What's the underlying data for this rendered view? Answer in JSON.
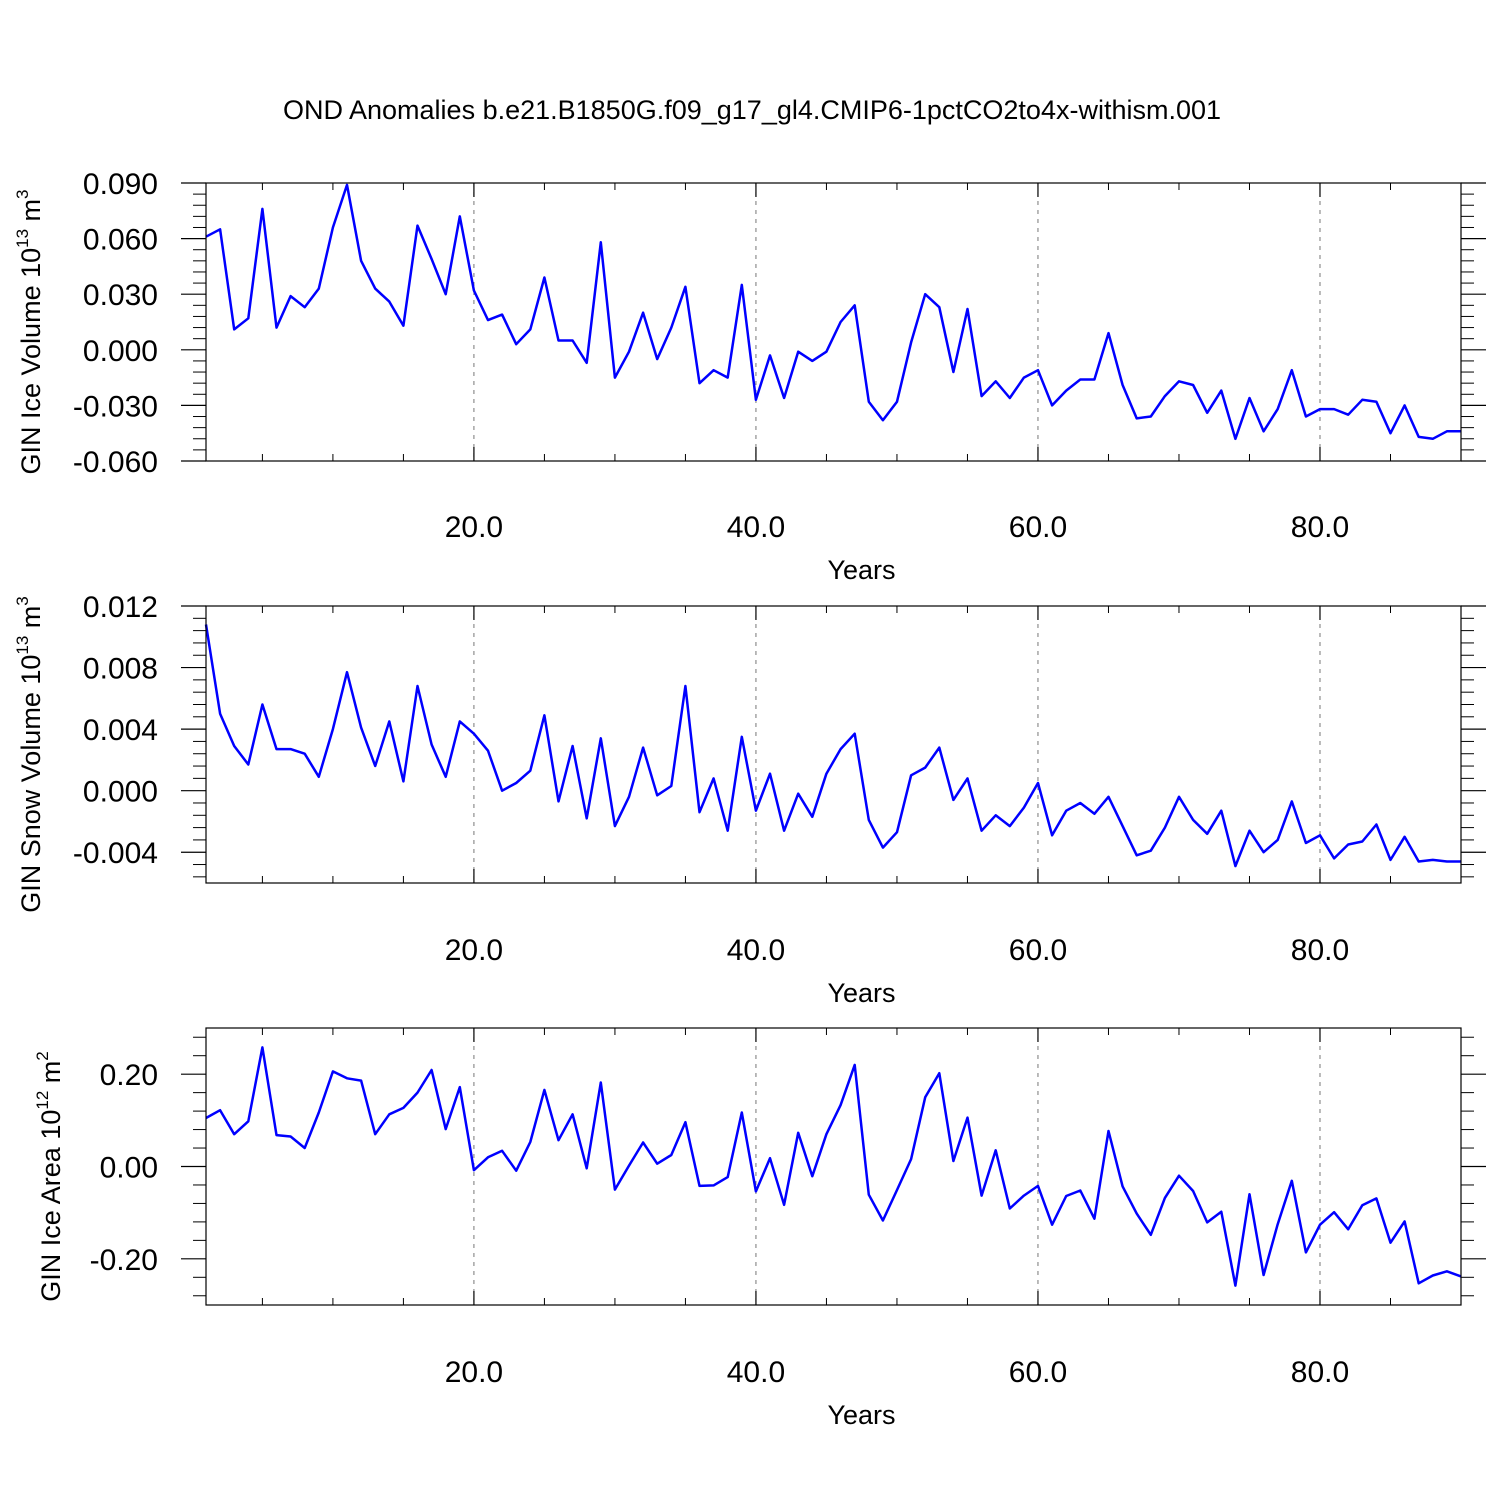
{
  "title": "OND Anomalies b.e21.B1850G.f09_g17_gl4.CMIP6-1pctCO2to4x-withism.001",
  "chart_data": [
    {
      "type": "line",
      "ylabel": {
        "main": "GIN Ice Volume 10",
        "exp": "13",
        "unit": " m",
        "unit_exp": "3"
      },
      "xlabel": "Years",
      "xlim": [
        1,
        90
      ],
      "ylim": [
        -0.06,
        0.09
      ],
      "yticks": [
        -0.06,
        -0.03,
        0.0,
        0.03,
        0.06,
        0.09
      ],
      "ytick_labels": [
        "-0.060",
        "-0.030",
        "0.000",
        "0.030",
        "0.060",
        "0.090"
      ],
      "xticks": [
        20,
        40,
        60,
        80
      ],
      "xtick_labels": [
        "20.0",
        "40.0",
        "60.0",
        "80.0"
      ],
      "grid": "vertical dashed at major x ticks",
      "line_color": "#0000ff",
      "x": [
        1,
        2,
        3,
        4,
        5,
        6,
        7,
        8,
        9,
        10,
        11,
        12,
        13,
        14,
        15,
        16,
        17,
        18,
        19,
        20,
        21,
        22,
        23,
        24,
        25,
        26,
        27,
        28,
        29,
        30,
        31,
        32,
        33,
        34,
        35,
        36,
        37,
        38,
        39,
        40,
        41,
        42,
        43,
        44,
        45,
        46,
        47,
        48,
        49,
        50,
        51,
        52,
        53,
        54,
        55,
        56,
        57,
        58,
        59,
        60,
        61,
        62,
        63,
        64,
        65,
        66,
        67,
        68,
        69,
        70,
        71,
        72,
        73,
        74,
        75,
        76,
        77,
        78,
        79,
        80,
        81,
        82,
        83,
        84,
        85,
        86,
        87,
        88,
        89,
        90
      ],
      "y": [
        0.061,
        0.065,
        0.011,
        0.017,
        0.076,
        0.012,
        0.029,
        0.023,
        0.033,
        0.066,
        0.089,
        0.048,
        0.033,
        0.026,
        0.013,
        0.067,
        0.049,
        0.03,
        0.072,
        0.032,
        0.016,
        0.019,
        0.003,
        0.011,
        0.039,
        0.005,
        0.005,
        -0.007,
        0.058,
        -0.015,
        -0.001,
        0.02,
        -0.005,
        0.012,
        0.034,
        -0.018,
        -0.011,
        -0.015,
        0.035,
        -0.027,
        -0.003,
        -0.026,
        -0.001,
        -0.006,
        -0.001,
        0.015,
        0.024,
        -0.028,
        -0.038,
        -0.028,
        0.004,
        0.03,
        0.023,
        -0.012,
        0.022,
        -0.025,
        -0.017,
        -0.026,
        -0.015,
        -0.011,
        -0.03,
        -0.022,
        -0.016,
        -0.016,
        0.009,
        -0.019,
        -0.037,
        -0.036,
        -0.025,
        -0.017,
        -0.019,
        -0.034,
        -0.022,
        -0.048,
        -0.026,
        -0.044,
        -0.032,
        -0.011,
        -0.036,
        -0.032,
        -0.032,
        -0.035,
        -0.027,
        -0.028,
        -0.045,
        -0.03,
        -0.047,
        -0.048,
        -0.044,
        -0.044
      ]
    },
    {
      "type": "line",
      "ylabel": {
        "main": "GIN Snow Volume 10",
        "exp": "13",
        "unit": " m",
        "unit_exp": "3"
      },
      "xlabel": "Years",
      "xlim": [
        1,
        90
      ],
      "ylim": [
        -0.006,
        0.012
      ],
      "yticks": [
        -0.004,
        0.0,
        0.004,
        0.008,
        0.012
      ],
      "ytick_labels": [
        "-0.004",
        "0.000",
        "0.004",
        "0.008",
        "0.012"
      ],
      "xticks": [
        20,
        40,
        60,
        80
      ],
      "xtick_labels": [
        "20.0",
        "40.0",
        "60.0",
        "80.0"
      ],
      "grid": "vertical dashed at major x ticks",
      "line_color": "#0000ff",
      "x": [
        1,
        2,
        3,
        4,
        5,
        6,
        7,
        8,
        9,
        10,
        11,
        12,
        13,
        14,
        15,
        16,
        17,
        18,
        19,
        20,
        21,
        22,
        23,
        24,
        25,
        26,
        27,
        28,
        29,
        30,
        31,
        32,
        33,
        34,
        35,
        36,
        37,
        38,
        39,
        40,
        41,
        42,
        43,
        44,
        45,
        46,
        47,
        48,
        49,
        50,
        51,
        52,
        53,
        54,
        55,
        56,
        57,
        58,
        59,
        60,
        61,
        62,
        63,
        64,
        65,
        66,
        67,
        68,
        69,
        70,
        71,
        72,
        73,
        74,
        75,
        76,
        77,
        78,
        79,
        80,
        81,
        82,
        83,
        84,
        85,
        86,
        87,
        88,
        89,
        90
      ],
      "y": [
        0.0108,
        0.005,
        0.0029,
        0.0017,
        0.0056,
        0.0027,
        0.0027,
        0.0024,
        0.0009,
        0.004,
        0.0077,
        0.0041,
        0.0016,
        0.0045,
        0.0006,
        0.0068,
        0.003,
        0.0009,
        0.0045,
        0.0037,
        0.0026,
        0.0,
        0.0005,
        0.0013,
        0.0049,
        -0.0007,
        0.0029,
        -0.0018,
        0.0034,
        -0.0023,
        -0.0004,
        0.0028,
        -0.0003,
        0.0003,
        0.0068,
        -0.0014,
        0.0008,
        -0.0026,
        0.0035,
        -0.0013,
        0.0011,
        -0.0026,
        -0.0002,
        -0.0017,
        0.0011,
        0.0027,
        0.0037,
        -0.0019,
        -0.0037,
        -0.0027,
        0.001,
        0.0015,
        0.0028,
        -0.0006,
        0.0008,
        -0.0026,
        -0.0016,
        -0.0023,
        -0.0011,
        0.0005,
        -0.0029,
        -0.0013,
        -0.0008,
        -0.0015,
        -0.0004,
        -0.0023,
        -0.0042,
        -0.0039,
        -0.0024,
        -0.0004,
        -0.0019,
        -0.0028,
        -0.0013,
        -0.0049,
        -0.0026,
        -0.004,
        -0.0032,
        -0.0007,
        -0.0034,
        -0.0029,
        -0.0044,
        -0.0035,
        -0.0033,
        -0.0022,
        -0.0045,
        -0.003,
        -0.0046,
        -0.0045,
        -0.0046,
        -0.0046
      ]
    },
    {
      "type": "line",
      "ylabel": {
        "main": "GIN Ice Area 10",
        "exp": "12",
        "unit": " m",
        "unit_exp": "2"
      },
      "xlabel": "Years",
      "xlim": [
        1,
        90
      ],
      "ylim": [
        -0.3,
        0.3
      ],
      "yticks": [
        -0.2,
        0.0,
        0.2
      ],
      "ytick_labels": [
        "-0.20",
        "0.00",
        "0.20"
      ],
      "xticks": [
        20,
        40,
        60,
        80
      ],
      "xtick_labels": [
        "20.0",
        "40.0",
        "60.0",
        "80.0"
      ],
      "grid": "vertical dashed at major x ticks",
      "line_color": "#0000ff",
      "x": [
        1,
        2,
        3,
        4,
        5,
        6,
        7,
        8,
        9,
        10,
        11,
        12,
        13,
        14,
        15,
        16,
        17,
        18,
        19,
        20,
        21,
        22,
        23,
        24,
        25,
        26,
        27,
        28,
        29,
        30,
        31,
        32,
        33,
        34,
        35,
        36,
        37,
        38,
        39,
        40,
        41,
        42,
        43,
        44,
        45,
        46,
        47,
        48,
        49,
        50,
        51,
        52,
        53,
        54,
        55,
        56,
        57,
        58,
        59,
        60,
        61,
        62,
        63,
        64,
        65,
        66,
        67,
        68,
        69,
        70,
        71,
        72,
        73,
        74,
        75,
        76,
        77,
        78,
        79,
        80,
        81,
        82,
        83,
        84,
        85,
        86,
        87,
        88,
        89,
        90
      ],
      "y": [
        0.105,
        0.122,
        0.07,
        0.098,
        0.258,
        0.068,
        0.065,
        0.04,
        0.117,
        0.206,
        0.191,
        0.186,
        0.07,
        0.113,
        0.127,
        0.16,
        0.209,
        0.081,
        0.172,
        -0.008,
        0.02,
        0.034,
        -0.009,
        0.053,
        0.166,
        0.057,
        0.113,
        -0.004,
        0.182,
        -0.05,
        0.002,
        0.052,
        0.006,
        0.025,
        0.096,
        -0.042,
        -0.041,
        -0.023,
        0.117,
        -0.054,
        0.018,
        -0.083,
        0.073,
        -0.021,
        0.07,
        0.133,
        0.22,
        -0.061,
        -0.117,
        -0.051,
        0.016,
        0.15,
        0.202,
        0.012,
        0.106,
        -0.063,
        0.035,
        -0.091,
        -0.063,
        -0.042,
        -0.126,
        -0.064,
        -0.052,
        -0.113,
        0.077,
        -0.043,
        -0.102,
        -0.148,
        -0.068,
        -0.02,
        -0.053,
        -0.121,
        -0.098,
        -0.258,
        -0.06,
        -0.235,
        -0.125,
        -0.031,
        -0.186,
        -0.126,
        -0.099,
        -0.136,
        -0.084,
        -0.069,
        -0.165,
        -0.119,
        -0.253,
        -0.236,
        -0.227,
        -0.238
      ]
    }
  ]
}
